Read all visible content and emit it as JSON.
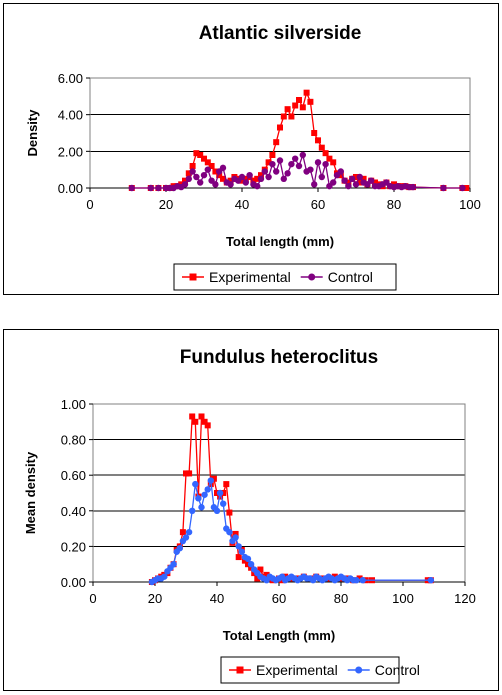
{
  "chart_data": [
    {
      "type": "line",
      "title": "Atlantic silverside",
      "xlabel": "Total length (mm)",
      "ylabel": "Density",
      "xlim": [
        0,
        100
      ],
      "ylim": [
        0,
        6
      ],
      "xticks": [
        0,
        20,
        40,
        60,
        80,
        100
      ],
      "yticks": [
        0,
        2,
        4,
        6
      ],
      "ytick_labels": [
        "0.00",
        "2.00",
        "4.00",
        "6.00"
      ],
      "grid": "horizontal",
      "legend_position": "bottom",
      "series": [
        {
          "name": "Experimental",
          "color": "#ff0000",
          "marker": "square",
          "points": [
            [
              11,
              0
            ],
            [
              16,
              0
            ],
            [
              18,
              0
            ],
            [
              20,
              0
            ],
            [
              21,
              0
            ],
            [
              22,
              0.1
            ],
            [
              23,
              0.1
            ],
            [
              24,
              0.2
            ],
            [
              25,
              0.4
            ],
            [
              26,
              0.8
            ],
            [
              27,
              1.2
            ],
            [
              28,
              1.9
            ],
            [
              29,
              1.8
            ],
            [
              30,
              1.6
            ],
            [
              31,
              1.4
            ],
            [
              32,
              1.2
            ],
            [
              33,
              0.9
            ],
            [
              34,
              0.7
            ],
            [
              35,
              0.5
            ],
            [
              36,
              0.3
            ],
            [
              37,
              0.4
            ],
            [
              38,
              0.6
            ],
            [
              39,
              0.5
            ],
            [
              40,
              0.4
            ],
            [
              41,
              0.5
            ],
            [
              42,
              0.6
            ],
            [
              43,
              0.4
            ],
            [
              44,
              0.5
            ],
            [
              45,
              0.7
            ],
            [
              46,
              1.0
            ],
            [
              47,
              1.4
            ],
            [
              48,
              1.8
            ],
            [
              49,
              2.5
            ],
            [
              50,
              3.3
            ],
            [
              51,
              3.9
            ],
            [
              52,
              4.3
            ],
            [
              53,
              3.9
            ],
            [
              54,
              4.5
            ],
            [
              55,
              4.8
            ],
            [
              56,
              4.4
            ],
            [
              57,
              5.2
            ],
            [
              58,
              4.7
            ],
            [
              59,
              3.0
            ],
            [
              60,
              2.6
            ],
            [
              61,
              2.2
            ],
            [
              62,
              1.9
            ],
            [
              63,
              1.6
            ],
            [
              64,
              1.4
            ],
            [
              65,
              0.8
            ],
            [
              66,
              0.7
            ],
            [
              67,
              0.4
            ],
            [
              68,
              0.3
            ],
            [
              69,
              0.5
            ],
            [
              70,
              0.6
            ],
            [
              71,
              0.3
            ],
            [
              72,
              0.5
            ],
            [
              73,
              0.2
            ],
            [
              74,
              0.4
            ],
            [
              75,
              0.3
            ],
            [
              76,
              0.2
            ],
            [
              77,
              0.1
            ],
            [
              78,
              0.3
            ],
            [
              79,
              0.1
            ],
            [
              80,
              0.2
            ],
            [
              81,
              0.1
            ],
            [
              82,
              0.1
            ],
            [
              83,
              0.1
            ],
            [
              84,
              0.05
            ],
            [
              85,
              0.05
            ],
            [
              93,
              0
            ],
            [
              98,
              0
            ],
            [
              99,
              0
            ]
          ]
        },
        {
          "name": "Control",
          "color": "#800080",
          "marker": "circle",
          "points": [
            [
              11,
              0
            ],
            [
              16,
              0
            ],
            [
              18,
              0
            ],
            [
              20,
              0
            ],
            [
              21,
              0
            ],
            [
              22,
              0
            ],
            [
              23,
              0.1
            ],
            [
              24,
              0.05
            ],
            [
              25,
              0.2
            ],
            [
              26,
              0.5
            ],
            [
              27,
              0.9
            ],
            [
              28,
              0.6
            ],
            [
              29,
              0.3
            ],
            [
              30,
              0.7
            ],
            [
              31,
              1.0
            ],
            [
              32,
              0.4
            ],
            [
              33,
              0.2
            ],
            [
              34,
              0.9
            ],
            [
              35,
              1.1
            ],
            [
              36,
              0.3
            ],
            [
              37,
              0.2
            ],
            [
              38,
              0.5
            ],
            [
              39,
              0.4
            ],
            [
              40,
              0.6
            ],
            [
              41,
              0.3
            ],
            [
              42,
              0.7
            ],
            [
              43,
              0.2
            ],
            [
              44,
              0.1
            ],
            [
              45,
              0.5
            ],
            [
              46,
              0.9
            ],
            [
              47,
              0.6
            ],
            [
              48,
              1.3
            ],
            [
              49,
              0.9
            ],
            [
              50,
              1.5
            ],
            [
              51,
              0.5
            ],
            [
              52,
              0.8
            ],
            [
              53,
              1.3
            ],
            [
              54,
              1.6
            ],
            [
              55,
              1.2
            ],
            [
              56,
              1.8
            ],
            [
              57,
              0.9
            ],
            [
              58,
              1.0
            ],
            [
              59,
              0.2
            ],
            [
              60,
              1.4
            ],
            [
              61,
              0.6
            ],
            [
              62,
              1.3
            ],
            [
              63,
              0.1
            ],
            [
              64,
              0.3
            ],
            [
              65,
              0.7
            ],
            [
              66,
              0.9
            ],
            [
              67,
              0.4
            ],
            [
              68,
              0.1
            ],
            [
              69,
              0.5
            ],
            [
              70,
              0.2
            ],
            [
              71,
              0.6
            ],
            [
              72,
              0.3
            ],
            [
              73,
              0.2
            ],
            [
              74,
              0.4
            ],
            [
              75,
              0.1
            ],
            [
              76,
              0.1
            ],
            [
              77,
              0.2
            ],
            [
              78,
              0.3
            ],
            [
              79,
              0.1
            ],
            [
              80,
              0.05
            ],
            [
              81,
              0.1
            ],
            [
              82,
              0.05
            ],
            [
              83,
              0.1
            ],
            [
              84,
              0.05
            ],
            [
              85,
              0.05
            ],
            [
              93,
              0
            ],
            [
              98,
              0
            ]
          ]
        }
      ]
    },
    {
      "type": "line",
      "title": "Fundulus heteroclitus",
      "xlabel": "Total Length (mm)",
      "ylabel": "Mean density",
      "xlim": [
        0,
        120
      ],
      "ylim": [
        0,
        1
      ],
      "xticks": [
        0,
        20,
        40,
        60,
        80,
        100,
        120
      ],
      "yticks": [
        0,
        0.2,
        0.4,
        0.6,
        0.8,
        1.0
      ],
      "ytick_labels": [
        "0.00",
        "0.20",
        "0.40",
        "0.60",
        "0.80",
        "1.00"
      ],
      "grid": "horizontal",
      "legend_position": "bottom",
      "series": [
        {
          "name": "Experimental",
          "color": "#ff0000",
          "marker": "square",
          "points": [
            [
              19,
              0
            ],
            [
              20,
              0.01
            ],
            [
              21,
              0.02
            ],
            [
              22,
              0.03
            ],
            [
              23,
              0.04
            ],
            [
              24,
              0.05
            ],
            [
              25,
              0.08
            ],
            [
              26,
              0.1
            ],
            [
              27,
              0.18
            ],
            [
              28,
              0.2
            ],
            [
              29,
              0.28
            ],
            [
              30,
              0.61
            ],
            [
              31,
              0.61
            ],
            [
              32,
              0.93
            ],
            [
              33,
              0.9
            ],
            [
              34,
              0.48
            ],
            [
              35,
              0.93
            ],
            [
              36,
              0.9
            ],
            [
              37,
              0.88
            ],
            [
              38,
              0.55
            ],
            [
              39,
              0.58
            ],
            [
              40,
              0.5
            ],
            [
              41,
              0.48
            ],
            [
              42,
              0.5
            ],
            [
              43,
              0.55
            ],
            [
              44,
              0.39
            ],
            [
              45,
              0.22
            ],
            [
              46,
              0.27
            ],
            [
              47,
              0.14
            ],
            [
              48,
              0.18
            ],
            [
              49,
              0.12
            ],
            [
              50,
              0.1
            ],
            [
              51,
              0.08
            ],
            [
              52,
              0.05
            ],
            [
              53,
              0.02
            ],
            [
              54,
              0.07
            ],
            [
              55,
              0.03
            ],
            [
              56,
              0.04
            ],
            [
              57,
              0.02
            ],
            [
              58,
              0.01
            ],
            [
              60,
              0.02
            ],
            [
              61,
              0.01
            ],
            [
              62,
              0.03
            ],
            [
              64,
              0.02
            ],
            [
              66,
              0.02
            ],
            [
              68,
              0.03
            ],
            [
              70,
              0.02
            ],
            [
              72,
              0.03
            ],
            [
              74,
              0.02
            ],
            [
              76,
              0.02
            ],
            [
              78,
              0.03
            ],
            [
              80,
              0.02
            ],
            [
              82,
              0.02
            ],
            [
              84,
              0.01
            ],
            [
              86,
              0.02
            ],
            [
              88,
              0.01
            ],
            [
              90,
              0.01
            ],
            [
              108,
              0.01
            ],
            [
              109,
              0.01
            ]
          ]
        },
        {
          "name": "Control",
          "color": "#3366ff",
          "marker": "circle",
          "points": [
            [
              19,
              0
            ],
            [
              20,
              0.01
            ],
            [
              21,
              0.02
            ],
            [
              22,
              0.02
            ],
            [
              23,
              0.03
            ],
            [
              24,
              0.06
            ],
            [
              25,
              0.08
            ],
            [
              26,
              0.1
            ],
            [
              27,
              0.17
            ],
            [
              28,
              0.19
            ],
            [
              29,
              0.23
            ],
            [
              30,
              0.25
            ],
            [
              31,
              0.28
            ],
            [
              32,
              0.4
            ],
            [
              33,
              0.55
            ],
            [
              34,
              0.47
            ],
            [
              35,
              0.42
            ],
            [
              36,
              0.49
            ],
            [
              37,
              0.52
            ],
            [
              38,
              0.57
            ],
            [
              39,
              0.42
            ],
            [
              40,
              0.4
            ],
            [
              41,
              0.5
            ],
            [
              42,
              0.44
            ],
            [
              43,
              0.3
            ],
            [
              44,
              0.28
            ],
            [
              45,
              0.23
            ],
            [
              46,
              0.25
            ],
            [
              47,
              0.2
            ],
            [
              48,
              0.17
            ],
            [
              49,
              0.14
            ],
            [
              50,
              0.13
            ],
            [
              51,
              0.1
            ],
            [
              52,
              0.07
            ],
            [
              53,
              0.05
            ],
            [
              54,
              0.03
            ],
            [
              55,
              0.02
            ],
            [
              56,
              0.01
            ],
            [
              57,
              0.03
            ],
            [
              58,
              0.02
            ],
            [
              59,
              0.01
            ],
            [
              60,
              0.02
            ],
            [
              61,
              0.03
            ],
            [
              62,
              0.01
            ],
            [
              63,
              0.02
            ],
            [
              64,
              0.03
            ],
            [
              65,
              0.02
            ],
            [
              66,
              0.01
            ],
            [
              67,
              0.02
            ],
            [
              68,
              0.03
            ],
            [
              69,
              0.02
            ],
            [
              70,
              0.02
            ],
            [
              71,
              0.01
            ],
            [
              72,
              0.03
            ],
            [
              73,
              0.02
            ],
            [
              74,
              0.01
            ],
            [
              75,
              0.02
            ],
            [
              76,
              0.03
            ],
            [
              77,
              0.02
            ],
            [
              78,
              0.01
            ],
            [
              79,
              0.02
            ],
            [
              80,
              0.03
            ],
            [
              81,
              0.02
            ],
            [
              82,
              0.01
            ],
            [
              83,
              0.02
            ],
            [
              84,
              0.01
            ],
            [
              85,
              0.01
            ],
            [
              87,
              0.01
            ],
            [
              109,
              0.01
            ]
          ]
        }
      ]
    }
  ]
}
